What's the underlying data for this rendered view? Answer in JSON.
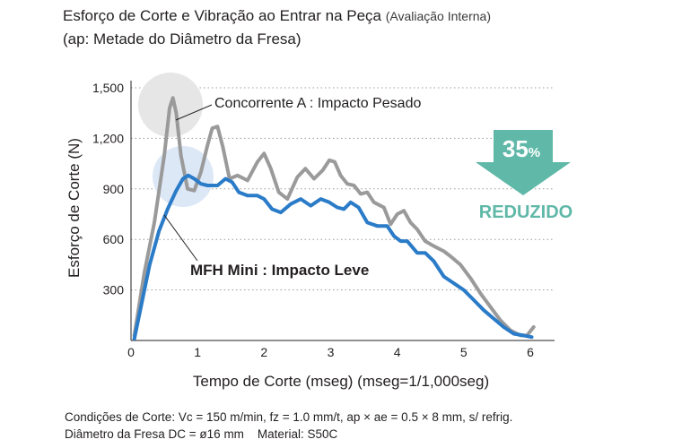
{
  "title": {
    "main": "Esforço de Corte e Vibração ao Entrar na Peça",
    "note": "(Avaliação Interna)",
    "line2": "(ap: Metade do Diâmetro da Fresa)"
  },
  "footer": {
    "line1": "Condições de Corte: Vc = 150 m/min, fz = 1.0 mm/t, ap × ae = 0.5 × 8 mm, s/ refrig.",
    "line2": "Diâmetro da Fresa DC = ø16 mm    Material: S50C"
  },
  "badge": {
    "percent": "35",
    "percent_sign": "%",
    "label": "REDUZIDO",
    "color": "#5fb8a8"
  },
  "chart_data": {
    "type": "line",
    "xlabel": "Tempo de Corte (mseg) (mseg=1/1,000seg)",
    "ylabel": "Esforço de Corte (N)",
    "xlim": [
      0,
      6.3
    ],
    "ylim": [
      0,
      1500
    ],
    "x_ticks": [
      "0",
      "1",
      "2",
      "3",
      "4",
      "5",
      "6"
    ],
    "y_ticks": [
      "300",
      "600",
      "900",
      "1,200",
      "1,500"
    ],
    "grid": "horizontal dotted",
    "series": [
      {
        "name": "Concorrente A : Impacto Pesado",
        "color": "#9a9a9a",
        "x": [
          0.05,
          0.2,
          0.35,
          0.5,
          0.58,
          0.63,
          0.68,
          0.75,
          0.85,
          0.95,
          1.05,
          1.15,
          1.22,
          1.3,
          1.38,
          1.48,
          1.6,
          1.75,
          1.9,
          2.0,
          2.1,
          2.22,
          2.35,
          2.5,
          2.62,
          2.75,
          2.88,
          2.98,
          3.06,
          3.15,
          3.25,
          3.35,
          3.45,
          3.55,
          3.65,
          3.8,
          3.9,
          4.0,
          4.1,
          4.2,
          4.3,
          4.42,
          4.55,
          4.7,
          4.8,
          4.95,
          5.1,
          5.25,
          5.4,
          5.55,
          5.7,
          5.85,
          5.95,
          6.05
        ],
        "y": [
          30,
          400,
          700,
          1100,
          1380,
          1440,
          1350,
          1100,
          900,
          890,
          1000,
          1160,
          1260,
          1270,
          1150,
          960,
          980,
          950,
          1060,
          1110,
          1020,
          880,
          840,
          970,
          1020,
          960,
          1010,
          1070,
          1060,
          980,
          930,
          920,
          870,
          880,
          820,
          790,
          690,
          750,
          770,
          700,
          660,
          590,
          560,
          530,
          500,
          450,
          370,
          280,
          200,
          120,
          60,
          30,
          30,
          80
        ]
      },
      {
        "name": "MFH Mini : Impacto Leve",
        "color": "#2a7bc8",
        "x": [
          0.05,
          0.15,
          0.28,
          0.42,
          0.55,
          0.68,
          0.78,
          0.86,
          0.95,
          1.05,
          1.15,
          1.3,
          1.42,
          1.52,
          1.62,
          1.75,
          1.9,
          2.0,
          2.12,
          2.25,
          2.4,
          2.55,
          2.7,
          2.85,
          2.98,
          3.1,
          3.2,
          3.3,
          3.42,
          3.55,
          3.7,
          3.85,
          3.95,
          4.05,
          4.15,
          4.3,
          4.42,
          4.55,
          4.7,
          4.85,
          5.0,
          5.15,
          5.3,
          5.45,
          5.6,
          5.75,
          5.9,
          6.02
        ],
        "y": [
          10,
          200,
          450,
          650,
          780,
          890,
          960,
          980,
          960,
          930,
          920,
          920,
          960,
          940,
          880,
          860,
          860,
          840,
          780,
          760,
          810,
          840,
          800,
          840,
          820,
          790,
          780,
          820,
          790,
          700,
          680,
          680,
          620,
          590,
          590,
          520,
          520,
          470,
          380,
          340,
          300,
          240,
          180,
          130,
          80,
          40,
          30,
          20
        ]
      }
    ],
    "annotations": [
      {
        "text": "Concorrente A : Impacto Pesado",
        "points_to": "gray peak near x=0.65"
      },
      {
        "text": "MFH Mini : Impacto Leve",
        "points_to": "blue peak near x=0.9"
      }
    ]
  }
}
